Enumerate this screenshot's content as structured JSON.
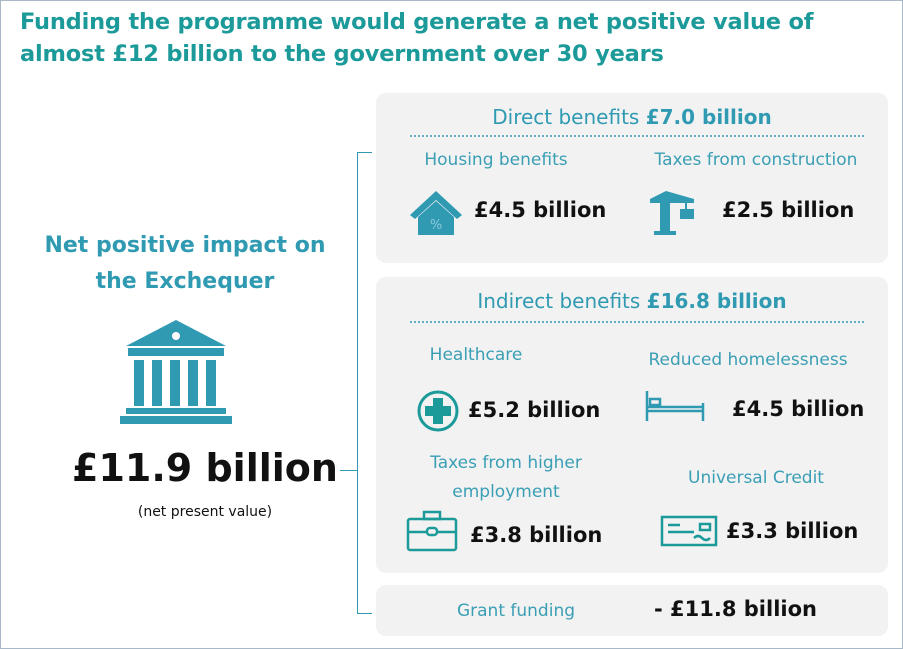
{
  "title": "Funding the programme would generate a net positive value of almost £12 billion to the government over 30 years",
  "summary": {
    "heading": "Net positive impact on the Exchequer",
    "total": "£11.9 billion",
    "note": "(net present value)"
  },
  "direct": {
    "label": "Direct benefits",
    "amount": "£7.0 billion",
    "items": [
      {
        "label": "Housing benefits",
        "value": "£4.5 billion",
        "icon": "house-percent-icon"
      },
      {
        "label": "Taxes from construction",
        "value": "£2.5 billion",
        "icon": "crane-icon"
      }
    ]
  },
  "indirect": {
    "label": "Indirect benefits",
    "amount": "£16.8 billion",
    "items": [
      {
        "label": "Healthcare",
        "value": "£5.2 billion",
        "icon": "medical-cross-icon"
      },
      {
        "label": "Reduced homelessness",
        "value": "£4.5 billion",
        "icon": "bed-icon"
      },
      {
        "label": "Taxes from higher employment",
        "value": "£3.8 billion",
        "icon": "briefcase-icon"
      },
      {
        "label": "Universal Credit",
        "value": "£3.3 billion",
        "icon": "cheque-icon"
      }
    ]
  },
  "grant": {
    "label": "Grant funding",
    "value": "- £11.8 billion"
  },
  "colors": {
    "title": "#1c9a9a",
    "accent": "#2f9ab2",
    "box": "#f2f2f2"
  }
}
